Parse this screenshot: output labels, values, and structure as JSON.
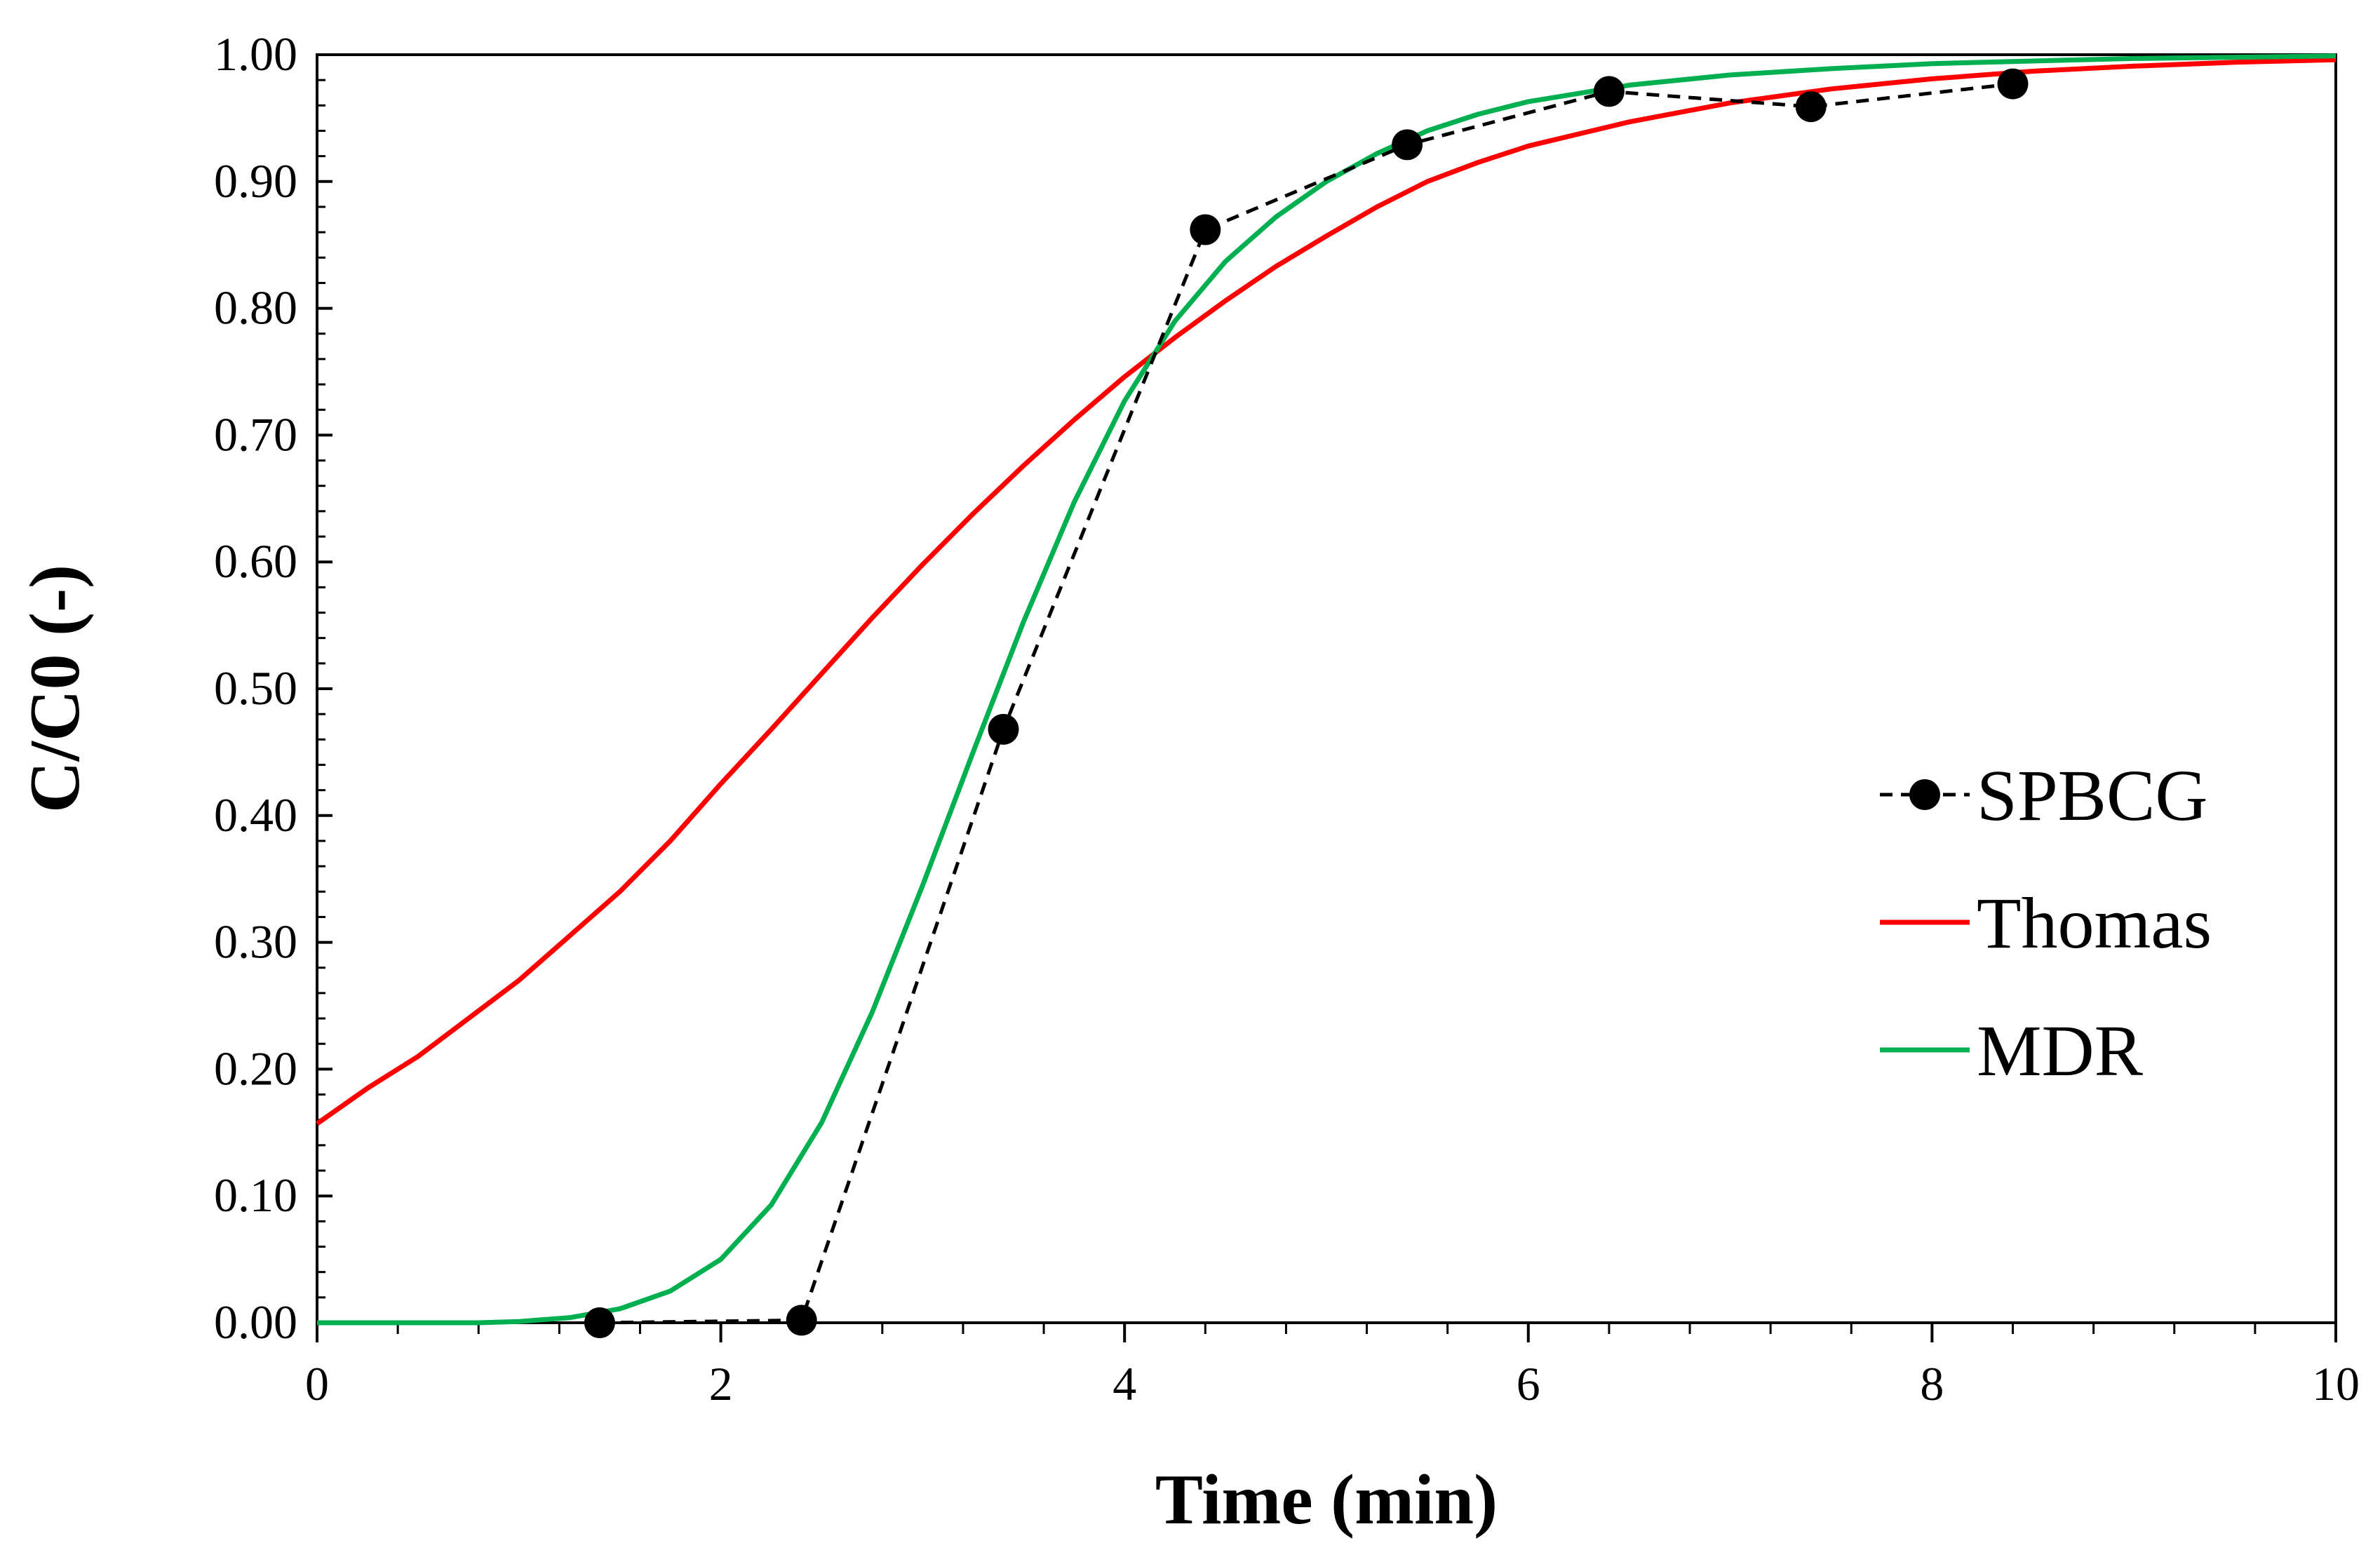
{
  "chart_data": {
    "type": "line",
    "title": "",
    "xlabel": "Time (min)",
    "ylabel": "C/C0 (-)",
    "xlim": [
      0,
      10
    ],
    "ylim": [
      0,
      1
    ],
    "grid": false,
    "legend_position": "right",
    "x_ticks": [
      0,
      2,
      4,
      6,
      8,
      10
    ],
    "x_tick_labels": [
      "0",
      "2",
      "4",
      "6",
      "8",
      "10"
    ],
    "y_ticks": [
      0,
      0.1,
      0.2,
      0.3,
      0.4,
      0.5,
      0.6,
      0.7,
      0.8,
      0.9,
      1.0
    ],
    "y_tick_labels": [
      "0.00",
      "0.10",
      "0.20",
      "0.30",
      "0.40",
      "0.50",
      "0.60",
      "0.70",
      "0.80",
      "0.90",
      "1.00"
    ],
    "series": [
      {
        "name": "SPBCG",
        "style": "dashed-markers",
        "color": "#000000",
        "x": [
          1.4,
          2.4,
          3.4,
          4.4,
          5.4,
          6.4,
          7.4,
          8.4
        ],
        "y": [
          0.0,
          0.002,
          0.468,
          0.862,
          0.929,
          0.971,
          0.959,
          0.977
        ]
      },
      {
        "name": "Thomas",
        "style": "solid",
        "color": "#ff0000",
        "x": [
          0,
          0.25,
          0.5,
          0.75,
          1.0,
          1.25,
          1.5,
          1.75,
          2.0,
          2.25,
          2.5,
          2.75,
          3.0,
          3.25,
          3.5,
          3.75,
          4.0,
          4.25,
          4.5,
          4.75,
          5.0,
          5.25,
          5.5,
          5.75,
          6.0,
          6.5,
          7.0,
          7.5,
          8.0,
          8.5,
          9.0,
          9.5,
          10.0
        ],
        "y": [
          0.157,
          0.185,
          0.21,
          0.24,
          0.27,
          0.305,
          0.34,
          0.38,
          0.425,
          0.468,
          0.512,
          0.556,
          0.598,
          0.638,
          0.676,
          0.712,
          0.746,
          0.777,
          0.806,
          0.833,
          0.857,
          0.88,
          0.9,
          0.915,
          0.928,
          0.947,
          0.962,
          0.973,
          0.981,
          0.987,
          0.991,
          0.994,
          0.996
        ]
      },
      {
        "name": "MDR",
        "style": "solid",
        "color": "#00b050",
        "x": [
          0,
          0.5,
          0.8,
          1.0,
          1.25,
          1.5,
          1.75,
          2.0,
          2.25,
          2.5,
          2.75,
          3.0,
          3.25,
          3.5,
          3.75,
          4.0,
          4.25,
          4.5,
          4.75,
          5.0,
          5.25,
          5.5,
          5.75,
          6.0,
          6.5,
          7.0,
          7.5,
          8.0,
          8.5,
          9.0,
          9.5,
          10.0
        ],
        "y": [
          0.0,
          0.0,
          0.0,
          0.001,
          0.004,
          0.011,
          0.025,
          0.05,
          0.093,
          0.158,
          0.245,
          0.345,
          0.45,
          0.553,
          0.647,
          0.727,
          0.79,
          0.837,
          0.872,
          0.9,
          0.922,
          0.94,
          0.953,
          0.963,
          0.976,
          0.984,
          0.989,
          0.993,
          0.995,
          0.997,
          0.998,
          0.999
        ]
      }
    ]
  }
}
